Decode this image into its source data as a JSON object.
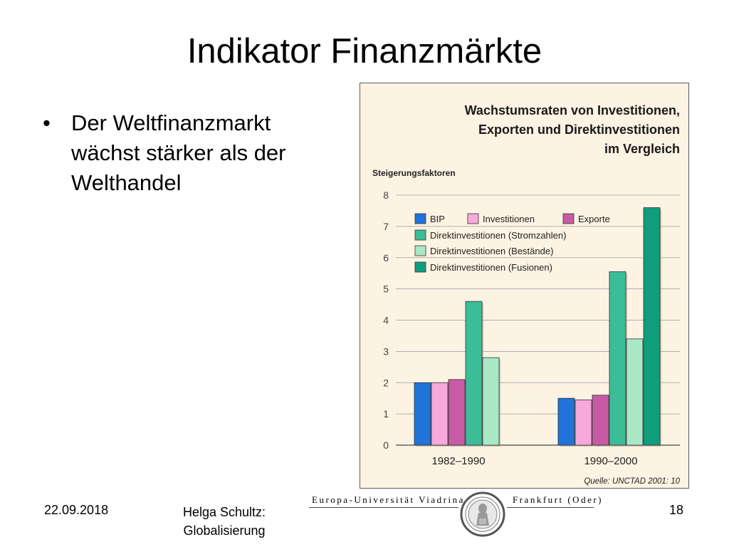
{
  "slide": {
    "title": "Indikator Finanzmärkte",
    "bullet": "Der Weltfinanzmarkt wächst stärker als der Welthandel",
    "bullet_symbol": "•",
    "footer_date": "22.09.2018",
    "footer_author_line1": "Helga Schultz:",
    "footer_author_line2": "Globalisierung",
    "footer_page": "18"
  },
  "university": {
    "name_left": "Europa-Universität Viadrina",
    "name_right": "Frankfurt (Oder)"
  },
  "chart_data": {
    "type": "bar",
    "title": "Wachstumsraten von Investitionen, Exporten und Direktinvestitionen im Vergleich",
    "title_lines": [
      "Wachstumsraten von Investitionen,",
      "Exporten und Direktinvestitionen",
      "im Vergleich"
    ],
    "ylabel": "Steigerungsfaktoren",
    "source": "Quelle: UNCTAD 2001: 10",
    "categories": [
      "1982–1990",
      "1990–2000"
    ],
    "ylim": [
      0,
      8
    ],
    "yticks": [
      0,
      1,
      2,
      3,
      4,
      5,
      6,
      7,
      8
    ],
    "grid": true,
    "legend_placement": "top-left",
    "series": [
      {
        "name": "BIP",
        "color": "#1f73d9",
        "values": [
          2.0,
          1.5
        ]
      },
      {
        "name": "Investitionen",
        "color": "#f7a9dc",
        "values": [
          2.0,
          1.45
        ]
      },
      {
        "name": "Exporte",
        "color": "#c95aa6",
        "values": [
          2.1,
          1.6
        ]
      },
      {
        "name": "Direktinvestitionen (Stromzahlen)",
        "color": "#3dbd97",
        "values": [
          4.6,
          5.55
        ]
      },
      {
        "name": "Direktinvestitionen (Bestände)",
        "color": "#a8e8c6",
        "values": [
          2.8,
          3.4
        ]
      },
      {
        "name": "Direktinvestitionen (Fusionen)",
        "color": "#0f9e7c",
        "values": [
          0,
          7.6
        ]
      }
    ]
  }
}
